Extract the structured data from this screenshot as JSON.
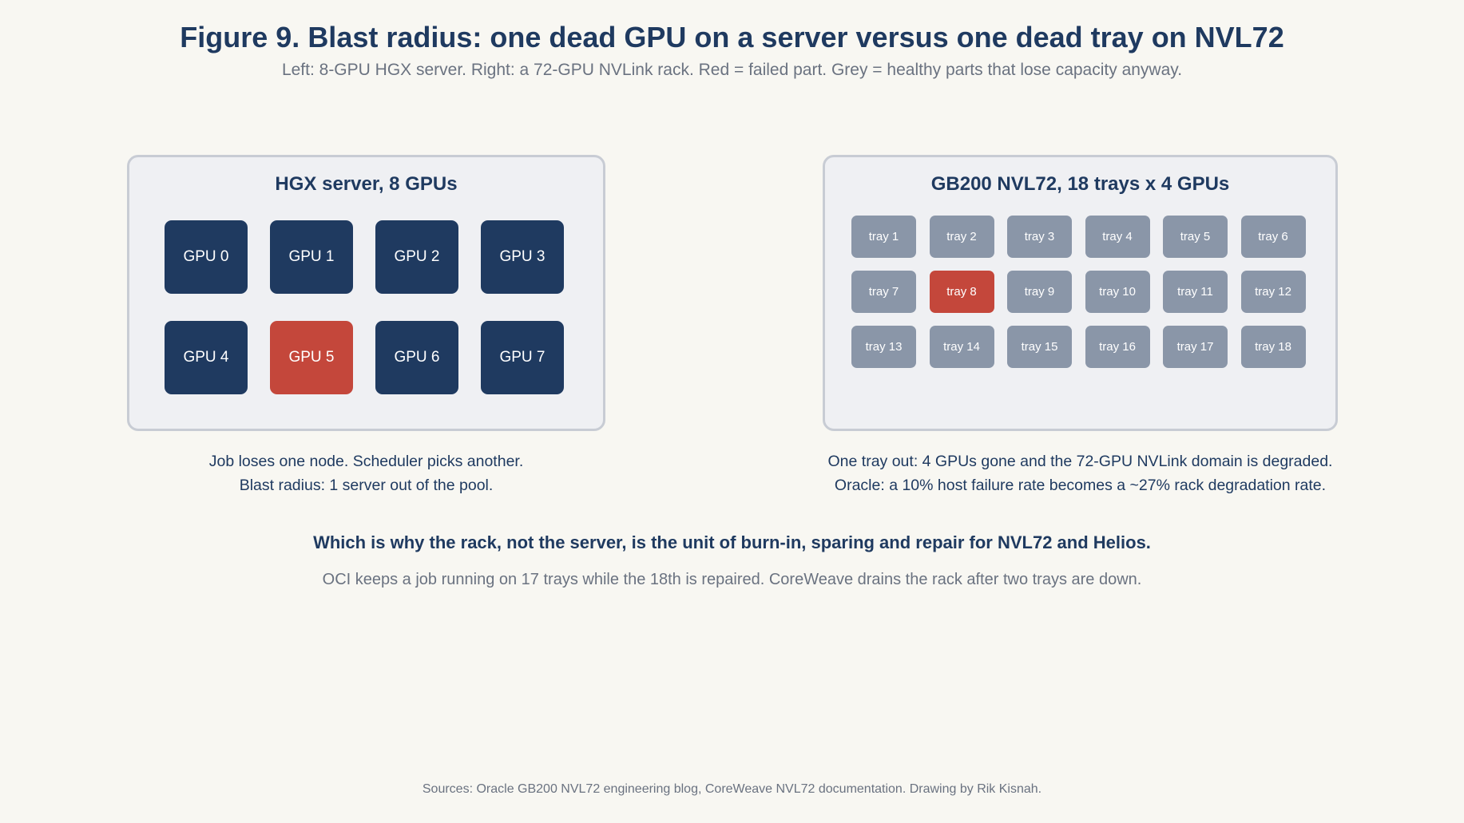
{
  "title": "Figure 9. Blast radius: one dead GPU on a server versus one dead tray on NVL72",
  "subtitle": "Left: 8-GPU HGX server. Right: a 72-GPU NVLink rack. Red = failed part. Grey = healthy parts that lose capacity anyway.",
  "colors": {
    "healthy_gpu": "#1f3a60",
    "failed": "#c4473b",
    "degraded_tray": "#8a96a8",
    "panel_bg": "#eff0f3",
    "page_bg": "#f8f7f2"
  },
  "left_panel": {
    "title": "HGX server, 8 GPUs",
    "gpus": [
      {
        "label": "GPU 0",
        "status": "healthy"
      },
      {
        "label": "GPU 1",
        "status": "healthy"
      },
      {
        "label": "GPU 2",
        "status": "healthy"
      },
      {
        "label": "GPU 3",
        "status": "healthy"
      },
      {
        "label": "GPU 4",
        "status": "healthy"
      },
      {
        "label": "GPU 5",
        "status": "failed"
      },
      {
        "label": "GPU 6",
        "status": "healthy"
      },
      {
        "label": "GPU 7",
        "status": "healthy"
      }
    ],
    "caption_line1": "Job loses one node. Scheduler picks another.",
    "caption_line2": "Blast radius: 1 server out of the pool."
  },
  "right_panel": {
    "title": "GB200 NVL72, 18 trays x 4 GPUs",
    "trays": [
      {
        "label": "tray 1",
        "status": "degraded"
      },
      {
        "label": "tray 2",
        "status": "degraded"
      },
      {
        "label": "tray 3",
        "status": "degraded"
      },
      {
        "label": "tray 4",
        "status": "degraded"
      },
      {
        "label": "tray 5",
        "status": "degraded"
      },
      {
        "label": "tray 6",
        "status": "degraded"
      },
      {
        "label": "tray 7",
        "status": "degraded"
      },
      {
        "label": "tray 8",
        "status": "failed"
      },
      {
        "label": "tray 9",
        "status": "degraded"
      },
      {
        "label": "tray 10",
        "status": "degraded"
      },
      {
        "label": "tray 11",
        "status": "degraded"
      },
      {
        "label": "tray 12",
        "status": "degraded"
      },
      {
        "label": "tray 13",
        "status": "degraded"
      },
      {
        "label": "tray 14",
        "status": "degraded"
      },
      {
        "label": "tray 15",
        "status": "degraded"
      },
      {
        "label": "tray 16",
        "status": "degraded"
      },
      {
        "label": "tray 17",
        "status": "degraded"
      },
      {
        "label": "tray 18",
        "status": "degraded"
      }
    ],
    "caption_line1": "One tray out: 4 GPUs gone and the 72-GPU NVLink domain is degraded.",
    "caption_line2": "Oracle: a 10% host failure rate becomes a ~27% rack degradation rate."
  },
  "conclusion": "Which is why the rack, not the server, is the unit of burn-in, sparing and repair for NVL72 and Helios.",
  "detail": "OCI keeps a job running on 17 trays while the 18th is repaired. CoreWeave drains the rack after two trays are down.",
  "sources": "Sources: Oracle GB200 NVL72 engineering blog, CoreWeave NVL72 documentation. Drawing by Rik Kisnah."
}
